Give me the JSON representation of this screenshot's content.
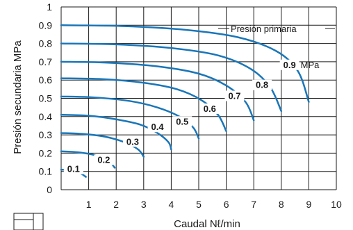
{
  "chart_data": {
    "type": "line",
    "title": "",
    "xlabel": "Caudal Nℓ/min",
    "ylabel": "Presión secundaria MPa",
    "xlim": [
      0,
      10
    ],
    "ylim": [
      0,
      1
    ],
    "x_ticks": [
      "1",
      "2",
      "3",
      "4",
      "5",
      "6",
      "7",
      "8",
      "9",
      "10"
    ],
    "y_ticks": [
      "0",
      "0.1",
      "0.2",
      "0.3",
      "0.4",
      "0.5",
      "0.6",
      "0.7",
      "0.8",
      "0.9",
      "1"
    ],
    "y_origin_label": "0",
    "grid": true,
    "annotation": "Presión primaria",
    "unit": "MPa",
    "line_color": "#1a76b8",
    "series": [
      {
        "name": "0.1",
        "values": [
          [
            0,
            0.11
          ],
          [
            0.4,
            0.105
          ],
          [
            0.7,
            0.09
          ],
          [
            0.9,
            0.07
          ]
        ]
      },
      {
        "name": "0.2",
        "values": [
          [
            0,
            0.21
          ],
          [
            0.6,
            0.205
          ],
          [
            1.2,
            0.19
          ],
          [
            1.7,
            0.16
          ],
          [
            1.95,
            0.12
          ]
        ]
      },
      {
        "name": "0.3",
        "values": [
          [
            0,
            0.31
          ],
          [
            0.8,
            0.305
          ],
          [
            1.6,
            0.29
          ],
          [
            2.3,
            0.26
          ],
          [
            2.8,
            0.22
          ],
          [
            3.0,
            0.18
          ]
        ]
      },
      {
        "name": "0.4",
        "values": [
          [
            0,
            0.41
          ],
          [
            1.0,
            0.405
          ],
          [
            2.0,
            0.385
          ],
          [
            2.9,
            0.355
          ],
          [
            3.5,
            0.31
          ],
          [
            3.9,
            0.26
          ],
          [
            4.0,
            0.22
          ]
        ]
      },
      {
        "name": "0.5",
        "values": [
          [
            0,
            0.51
          ],
          [
            1.2,
            0.505
          ],
          [
            2.5,
            0.485
          ],
          [
            3.5,
            0.45
          ],
          [
            4.3,
            0.4
          ],
          [
            4.8,
            0.34
          ],
          [
            5.0,
            0.28
          ]
        ]
      },
      {
        "name": "0.6",
        "values": [
          [
            0,
            0.61
          ],
          [
            1.5,
            0.605
          ],
          [
            3.0,
            0.585
          ],
          [
            4.2,
            0.55
          ],
          [
            5.1,
            0.49
          ],
          [
            5.7,
            0.41
          ],
          [
            6.0,
            0.32
          ]
        ]
      },
      {
        "name": "0.7",
        "values": [
          [
            0,
            0.7
          ],
          [
            1.7,
            0.695
          ],
          [
            3.5,
            0.675
          ],
          [
            5.0,
            0.635
          ],
          [
            6.0,
            0.57
          ],
          [
            6.7,
            0.48
          ],
          [
            7.0,
            0.38
          ]
        ]
      },
      {
        "name": "0.8",
        "values": [
          [
            0,
            0.8
          ],
          [
            2.0,
            0.795
          ],
          [
            4.0,
            0.775
          ],
          [
            5.7,
            0.735
          ],
          [
            6.9,
            0.66
          ],
          [
            7.6,
            0.56
          ],
          [
            8.0,
            0.43
          ]
        ]
      },
      {
        "name": "0.9",
        "values": [
          [
            0,
            0.9
          ],
          [
            2.3,
            0.895
          ],
          [
            4.5,
            0.875
          ],
          [
            6.4,
            0.835
          ],
          [
            7.8,
            0.76
          ],
          [
            8.6,
            0.65
          ],
          [
            9.0,
            0.48
          ]
        ]
      }
    ],
    "curve_labels": [
      {
        "text": "0.1",
        "at": [
          0.45,
          0.1
        ]
      },
      {
        "text": "0.2",
        "at": [
          1.55,
          0.15
        ]
      },
      {
        "text": "0.3",
        "at": [
          2.6,
          0.25
        ]
      },
      {
        "text": "0.4",
        "at": [
          3.5,
          0.33
        ]
      },
      {
        "text": "0.5",
        "at": [
          4.4,
          0.36
        ]
      },
      {
        "text": "0.6",
        "at": [
          5.4,
          0.43
        ]
      },
      {
        "text": "0.7",
        "at": [
          6.3,
          0.5
        ]
      },
      {
        "text": "0.8",
        "at": [
          7.3,
          0.56
        ]
      },
      {
        "text": "0.9",
        "at": [
          8.3,
          0.67
        ]
      }
    ]
  }
}
